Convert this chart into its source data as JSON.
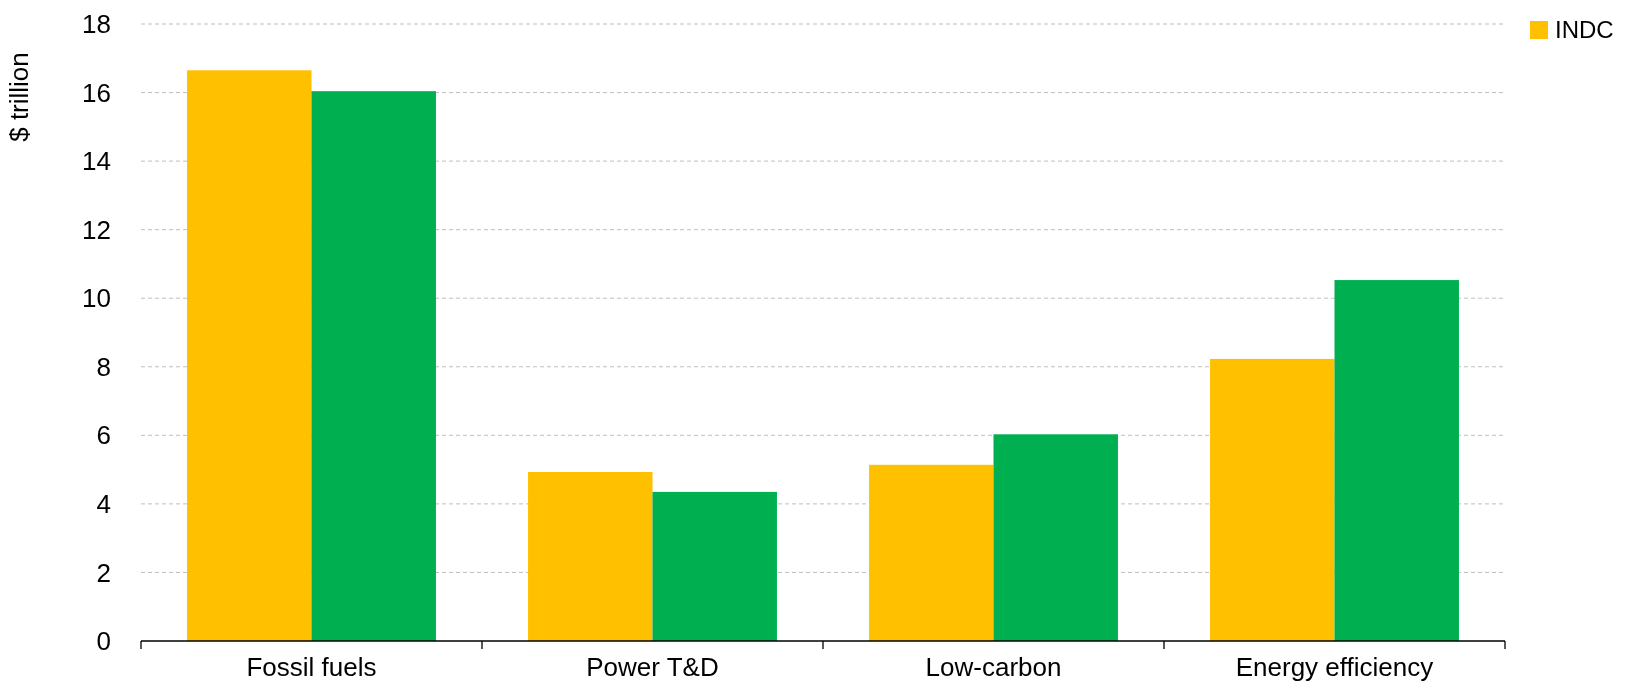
{
  "chart_data": {
    "type": "bar",
    "ylabel": "$ trillion",
    "categories": [
      "Fossil fuels",
      "Power T&D",
      "Low-carbon",
      "Energy efficiency"
    ],
    "series": [
      {
        "name": "INDC",
        "color": "#ffc000",
        "values": [
          16.65,
          4.93,
          5.14,
          8.23
        ]
      },
      {
        "color": "#00b050",
        "values": [
          16.04,
          4.35,
          6.03,
          10.53
        ]
      }
    ],
    "ylim": [
      0,
      18
    ],
    "yticks": [
      0,
      2,
      4,
      6,
      8,
      10,
      12,
      14,
      16,
      18
    ],
    "grid": "y",
    "legend": "top right"
  }
}
